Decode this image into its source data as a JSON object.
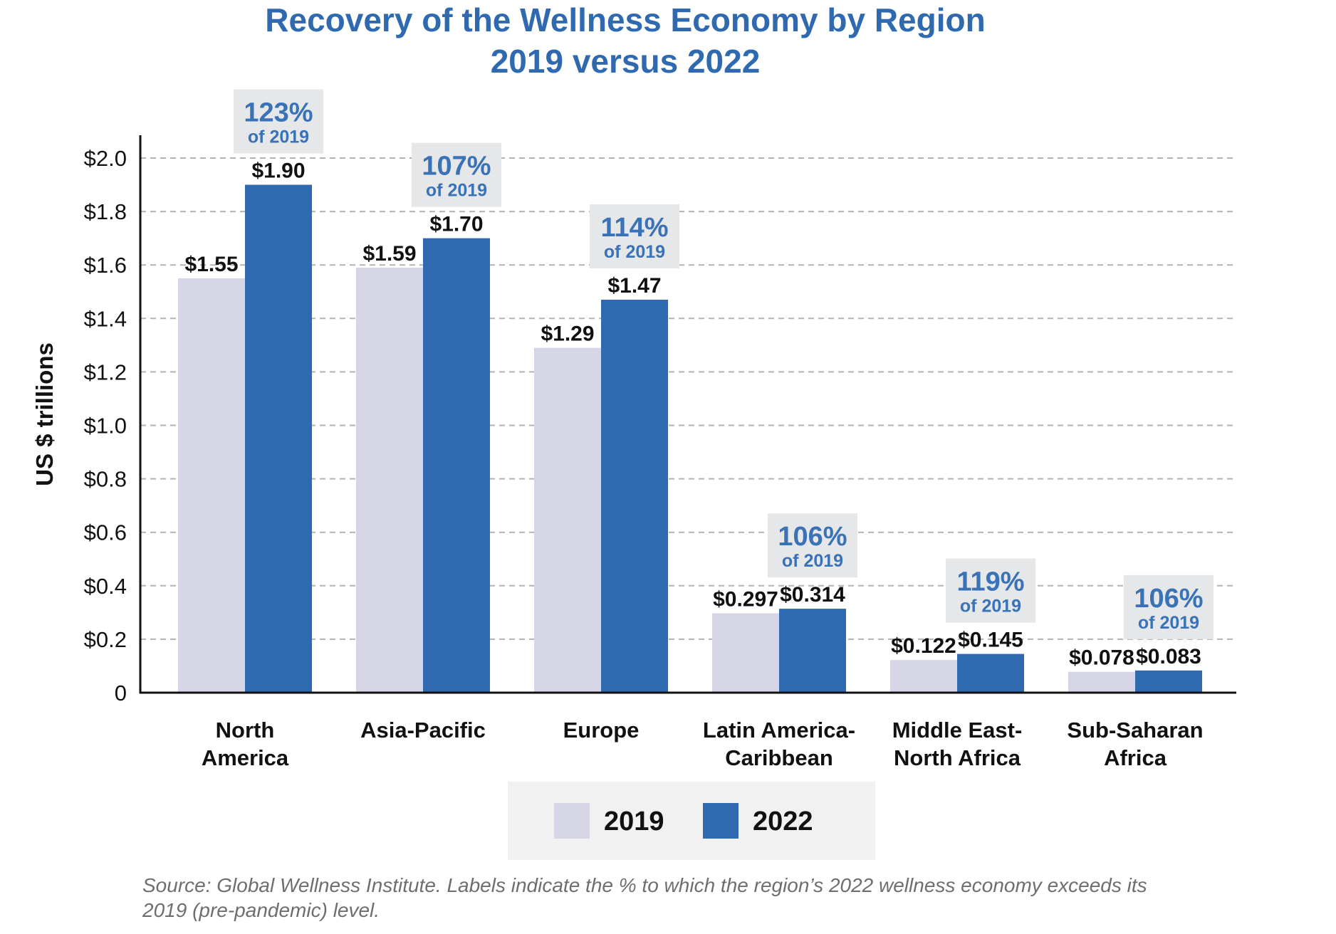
{
  "chart_data": {
    "type": "bar",
    "title": "Recovery of the Wellness Economy by Region",
    "subtitle": "2019 versus 2022",
    "ylabel": "US $ trillions",
    "xlabel": "",
    "ylim": [
      0,
      2.1
    ],
    "grid": true,
    "yticks": [
      {
        "value": 0,
        "label": "0"
      },
      {
        "value": 0.2,
        "label": "$0.2"
      },
      {
        "value": 0.4,
        "label": "$0.4"
      },
      {
        "value": 0.6,
        "label": "$0.6"
      },
      {
        "value": 0.8,
        "label": "$0.8"
      },
      {
        "value": 1.0,
        "label": "$1.0"
      },
      {
        "value": 1.2,
        "label": "$1.2"
      },
      {
        "value": 1.4,
        "label": "$1.4"
      },
      {
        "value": 1.6,
        "label": "$1.6"
      },
      {
        "value": 1.8,
        "label": "$1.8"
      },
      {
        "value": 2.0,
        "label": "$2.0"
      }
    ],
    "categories": [
      [
        "North",
        "America"
      ],
      [
        "Asia-Pacific"
      ],
      [
        "Europe"
      ],
      [
        "Latin America-",
        "Caribbean"
      ],
      [
        "Middle East-",
        "North Africa"
      ],
      [
        "Sub-Saharan",
        "Africa"
      ]
    ],
    "series": [
      {
        "name": "2019",
        "color": "#d5d5e6",
        "values": [
          1.55,
          1.59,
          1.29,
          0.297,
          0.122,
          0.078
        ],
        "labels": [
          "$1.55",
          "$1.59",
          "$1.29",
          "$0.297",
          "$0.122",
          "$0.078"
        ]
      },
      {
        "name": "2022",
        "color": "#2f6ab1",
        "values": [
          1.9,
          1.7,
          1.47,
          0.314,
          0.145,
          0.083
        ],
        "labels": [
          "$1.90",
          "$1.70",
          "$1.47",
          "$0.314",
          "$0.145",
          "$0.083"
        ]
      }
    ],
    "annotations": [
      {
        "pct": "123%",
        "sub": "of 2019"
      },
      {
        "pct": "107%",
        "sub": "of 2019"
      },
      {
        "pct": "114%",
        "sub": "of 2019"
      },
      {
        "pct": "106%",
        "sub": "of 2019"
      },
      {
        "pct": "119%",
        "sub": "of 2019"
      },
      {
        "pct": "106%",
        "sub": "of 2019"
      }
    ],
    "legend": [
      "2019",
      "2022"
    ],
    "legend_position": "bottom-center",
    "annotation_box_color": "#e6e7e8",
    "legend_box_color": "#f1f1f2"
  },
  "source": "Source: Global Wellness Institute. Labels indicate the % to which the region’s 2022 wellness economy exceeds its 2019 (pre-pandemic) level."
}
